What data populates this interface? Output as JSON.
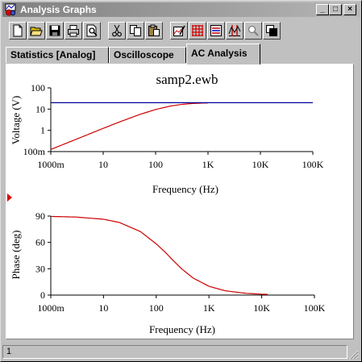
{
  "window": {
    "title": "Analysis Graphs",
    "minimize": "_",
    "maximize": "□",
    "close": "×"
  },
  "toolbar": [
    {
      "name": "new-icon"
    },
    {
      "name": "open-icon"
    },
    {
      "name": "save-icon"
    },
    {
      "name": "print-icon"
    },
    {
      "name": "print-preview-icon"
    },
    {
      "name": "cut-icon"
    },
    {
      "name": "copy-icon"
    },
    {
      "name": "paste-icon"
    },
    {
      "name": "graph-properties-icon"
    },
    {
      "name": "toggle-grid-icon"
    },
    {
      "name": "toggle-legend-icon"
    },
    {
      "name": "cursors-icon"
    },
    {
      "name": "zoom-icon"
    },
    {
      "name": "reverse-colors-icon"
    }
  ],
  "tabs": [
    {
      "label": "Statistics [Analog]",
      "active": false
    },
    {
      "label": "Oscilloscope",
      "active": false
    },
    {
      "label": "AC Analysis",
      "active": true
    }
  ],
  "colors": {
    "magnitude": "#cc0000",
    "reference": "#000099",
    "marker": "#e00000"
  },
  "chart_data": [
    {
      "type": "line",
      "title": "samp2.ewb",
      "xlabel": "Frequency (Hz)",
      "ylabel": "Voltage (V)",
      "x_scale": "log",
      "y_scale": "log",
      "xlim": [
        1,
        100000
      ],
      "ylim": [
        0.1,
        100
      ],
      "xticks": [
        "1000m",
        "10",
        "100",
        "1K",
        "10K",
        "100K"
      ],
      "yticks": [
        "100m",
        "1",
        "10",
        "100"
      ],
      "grid": false,
      "series": [
        {
          "role": "magnitude",
          "x": [
            1,
            2,
            5,
            10,
            20,
            50,
            100,
            200,
            300,
            500,
            800,
            1000
          ],
          "y": [
            0.126,
            0.25,
            0.62,
            1.24,
            2.43,
            5.6,
            9.6,
            14.2,
            16.4,
            18.4,
            19.3,
            19.5
          ]
        },
        {
          "role": "reference",
          "x": [
            1,
            100000
          ],
          "y": [
            20,
            20
          ]
        }
      ]
    },
    {
      "type": "line",
      "title": "",
      "xlabel": "Frequency (Hz)",
      "ylabel": "Phase (deg)",
      "x_scale": "log",
      "y_scale": "linear",
      "xlim": [
        1,
        100000
      ],
      "ylim": [
        0,
        90
      ],
      "xticks": [
        "1000m",
        "10",
        "100",
        "1K",
        "10K",
        "100K"
      ],
      "yticks": [
        "0",
        "30",
        "60",
        "90"
      ],
      "grid": false,
      "series": [
        {
          "role": "phase",
          "x": [
            1,
            3,
            10,
            20,
            50,
            100,
            150,
            200,
            300,
            500,
            1000,
            2000,
            5000,
            10000,
            13000
          ],
          "y": [
            89.6,
            88.9,
            86.4,
            82.7,
            72.4,
            58.3,
            48.5,
            40.6,
            30.2,
            19.4,
            10.0,
            5.0,
            2.0,
            1.0,
            0.8
          ]
        }
      ]
    }
  ],
  "status": {
    "text": "1"
  }
}
